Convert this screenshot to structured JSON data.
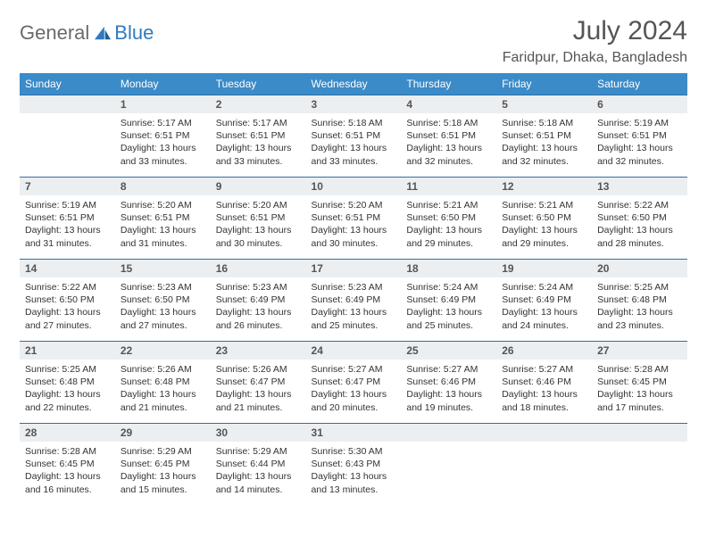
{
  "brand": {
    "part1": "General",
    "part2": "Blue"
  },
  "title": "July 2024",
  "location": "Faridpur, Dhaka, Bangladesh",
  "colors": {
    "header_bg": "#3b8bc8",
    "header_text": "#ffffff",
    "daynum_bg": "#eceff1",
    "row_border": "#2f6fa8",
    "body_text": "#333333",
    "brand_gray": "#6a6a6a",
    "brand_blue": "#2f7bbf"
  },
  "weekdays": [
    "Sunday",
    "Monday",
    "Tuesday",
    "Wednesday",
    "Thursday",
    "Friday",
    "Saturday"
  ],
  "grid": {
    "cols": 7,
    "rows": 5,
    "start_weekday_index": 1,
    "days_in_month": 31
  },
  "day_data": {
    "1": {
      "sunrise": "5:17 AM",
      "sunset": "6:51 PM",
      "daylight": "13 hours and 33 minutes."
    },
    "2": {
      "sunrise": "5:17 AM",
      "sunset": "6:51 PM",
      "daylight": "13 hours and 33 minutes."
    },
    "3": {
      "sunrise": "5:18 AM",
      "sunset": "6:51 PM",
      "daylight": "13 hours and 33 minutes."
    },
    "4": {
      "sunrise": "5:18 AM",
      "sunset": "6:51 PM",
      "daylight": "13 hours and 32 minutes."
    },
    "5": {
      "sunrise": "5:18 AM",
      "sunset": "6:51 PM",
      "daylight": "13 hours and 32 minutes."
    },
    "6": {
      "sunrise": "5:19 AM",
      "sunset": "6:51 PM",
      "daylight": "13 hours and 32 minutes."
    },
    "7": {
      "sunrise": "5:19 AM",
      "sunset": "6:51 PM",
      "daylight": "13 hours and 31 minutes."
    },
    "8": {
      "sunrise": "5:20 AM",
      "sunset": "6:51 PM",
      "daylight": "13 hours and 31 minutes."
    },
    "9": {
      "sunrise": "5:20 AM",
      "sunset": "6:51 PM",
      "daylight": "13 hours and 30 minutes."
    },
    "10": {
      "sunrise": "5:20 AM",
      "sunset": "6:51 PM",
      "daylight": "13 hours and 30 minutes."
    },
    "11": {
      "sunrise": "5:21 AM",
      "sunset": "6:50 PM",
      "daylight": "13 hours and 29 minutes."
    },
    "12": {
      "sunrise": "5:21 AM",
      "sunset": "6:50 PM",
      "daylight": "13 hours and 29 minutes."
    },
    "13": {
      "sunrise": "5:22 AM",
      "sunset": "6:50 PM",
      "daylight": "13 hours and 28 minutes."
    },
    "14": {
      "sunrise": "5:22 AM",
      "sunset": "6:50 PM",
      "daylight": "13 hours and 27 minutes."
    },
    "15": {
      "sunrise": "5:23 AM",
      "sunset": "6:50 PM",
      "daylight": "13 hours and 27 minutes."
    },
    "16": {
      "sunrise": "5:23 AM",
      "sunset": "6:49 PM",
      "daylight": "13 hours and 26 minutes."
    },
    "17": {
      "sunrise": "5:23 AM",
      "sunset": "6:49 PM",
      "daylight": "13 hours and 25 minutes."
    },
    "18": {
      "sunrise": "5:24 AM",
      "sunset": "6:49 PM",
      "daylight": "13 hours and 25 minutes."
    },
    "19": {
      "sunrise": "5:24 AM",
      "sunset": "6:49 PM",
      "daylight": "13 hours and 24 minutes."
    },
    "20": {
      "sunrise": "5:25 AM",
      "sunset": "6:48 PM",
      "daylight": "13 hours and 23 minutes."
    },
    "21": {
      "sunrise": "5:25 AM",
      "sunset": "6:48 PM",
      "daylight": "13 hours and 22 minutes."
    },
    "22": {
      "sunrise": "5:26 AM",
      "sunset": "6:48 PM",
      "daylight": "13 hours and 21 minutes."
    },
    "23": {
      "sunrise": "5:26 AM",
      "sunset": "6:47 PM",
      "daylight": "13 hours and 21 minutes."
    },
    "24": {
      "sunrise": "5:27 AM",
      "sunset": "6:47 PM",
      "daylight": "13 hours and 20 minutes."
    },
    "25": {
      "sunrise": "5:27 AM",
      "sunset": "6:46 PM",
      "daylight": "13 hours and 19 minutes."
    },
    "26": {
      "sunrise": "5:27 AM",
      "sunset": "6:46 PM",
      "daylight": "13 hours and 18 minutes."
    },
    "27": {
      "sunrise": "5:28 AM",
      "sunset": "6:45 PM",
      "daylight": "13 hours and 17 minutes."
    },
    "28": {
      "sunrise": "5:28 AM",
      "sunset": "6:45 PM",
      "daylight": "13 hours and 16 minutes."
    },
    "29": {
      "sunrise": "5:29 AM",
      "sunset": "6:45 PM",
      "daylight": "13 hours and 15 minutes."
    },
    "30": {
      "sunrise": "5:29 AM",
      "sunset": "6:44 PM",
      "daylight": "13 hours and 14 minutes."
    },
    "31": {
      "sunrise": "5:30 AM",
      "sunset": "6:43 PM",
      "daylight": "13 hours and 13 minutes."
    }
  },
  "labels": {
    "sunrise": "Sunrise:",
    "sunset": "Sunset:",
    "daylight": "Daylight:"
  }
}
